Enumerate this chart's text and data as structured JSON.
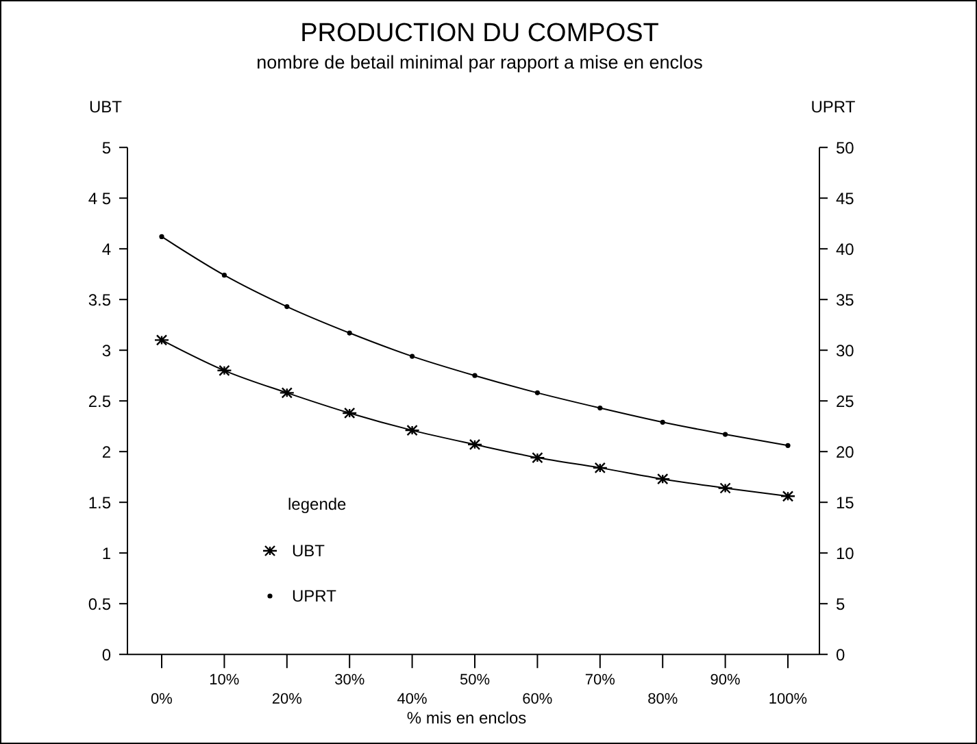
{
  "chart_data": {
    "type": "line",
    "title": "PRODUCTION DU COMPOST",
    "subtitle": "nombre de betail minimal par rapport a mise en enclos",
    "xlabel": "% mis en enclos",
    "ylabel": "UBT",
    "y2label": "UPRT",
    "legend_title": "legende",
    "categories": [
      "0%",
      "10%",
      "20%",
      "30%",
      "40%",
      "50%",
      "60%",
      "70%",
      "80%",
      "90%",
      "100%"
    ],
    "series": [
      {
        "name": "UBT",
        "color": "#000000",
        "marker": "cross",
        "values": [
          3.1,
          2.8,
          2.58,
          2.38,
          2.21,
          2.07,
          1.94,
          1.84,
          1.73,
          1.64,
          1.56
        ]
      },
      {
        "name": "UPRT",
        "color": "#000000",
        "marker": "circle",
        "axis": "y2",
        "values": [
          41.2,
          37.4,
          34.3,
          31.7,
          29.4,
          27.5,
          25.8,
          24.3,
          22.9,
          21.7,
          20.6
        ]
      }
    ],
    "ylim": [
      0,
      5
    ],
    "yticks": [
      0,
      0.5,
      1,
      1.5,
      2,
      2.5,
      3,
      3.5,
      4,
      {
        "value": 4.5,
        "label": "4 5"
      },
      5
    ],
    "y2lim": [
      0,
      50
    ],
    "y2ticks": [
      0,
      5,
      10,
      15,
      20,
      25,
      30,
      35,
      40,
      45,
      50
    ],
    "grid": false,
    "legend": "bottom left",
    "line_style": "solid"
  }
}
